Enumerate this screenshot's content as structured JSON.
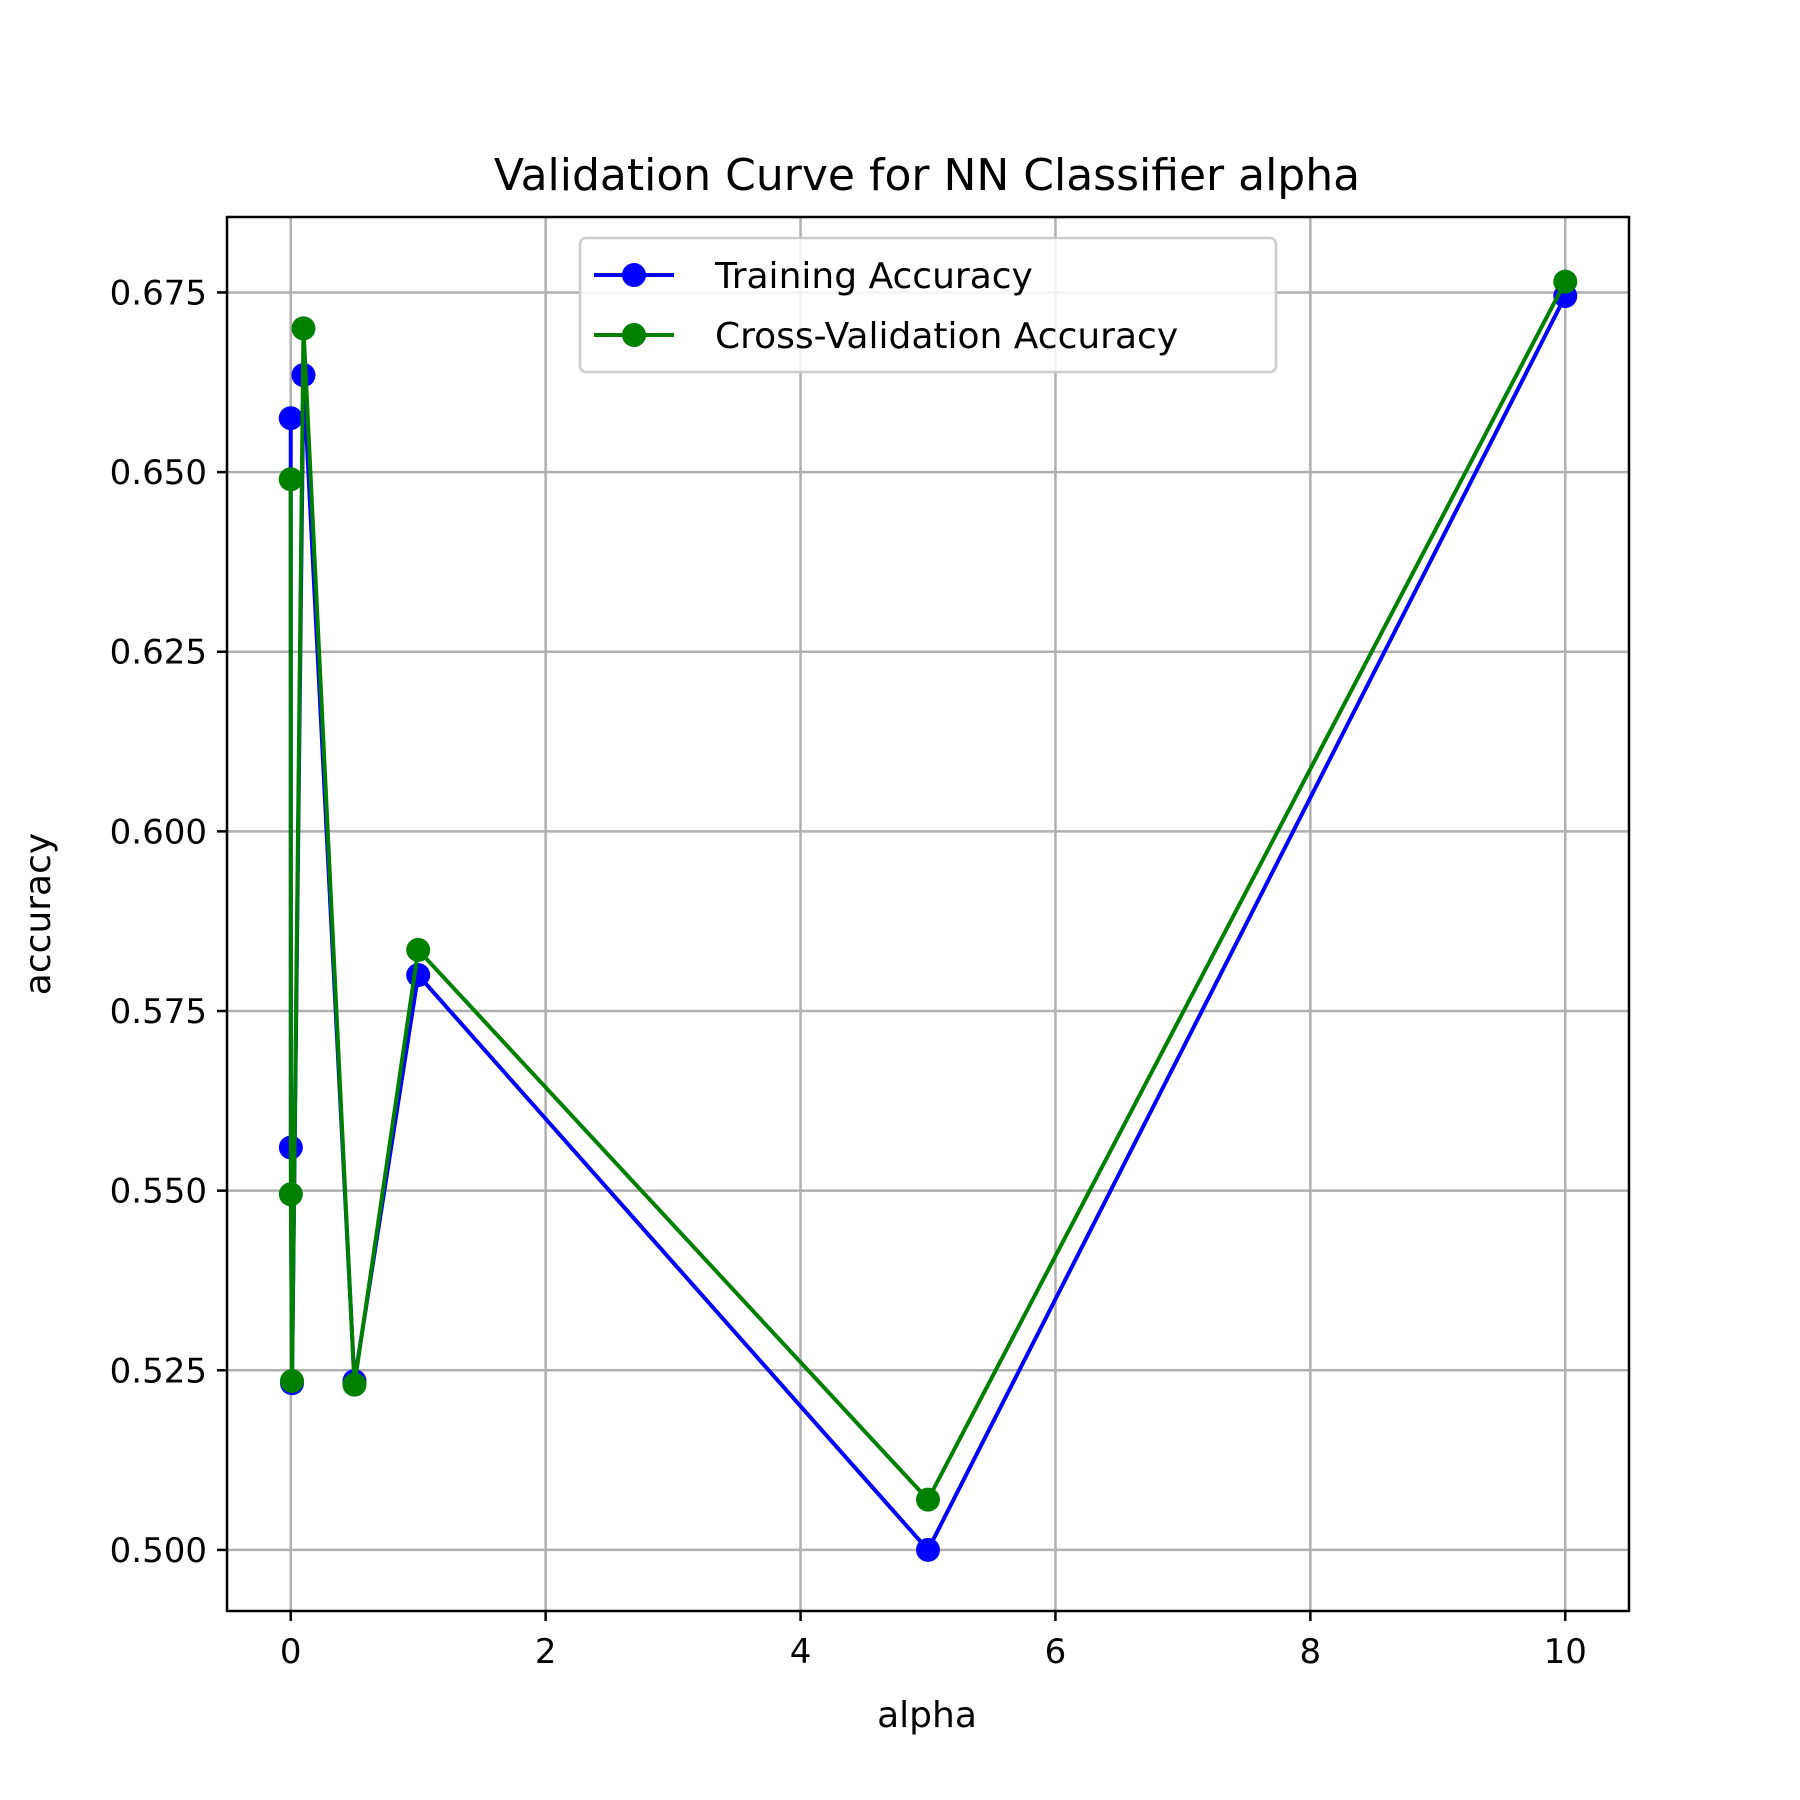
{
  "chart_data": {
    "type": "line",
    "title": "Validation Curve for NN Classifier alpha",
    "xlabel": "alpha",
    "ylabel": "accuracy",
    "xlim": [
      -0.5,
      10.5
    ],
    "ylim": [
      0.4915,
      0.6855
    ],
    "xticks": [
      0,
      2,
      4,
      6,
      8,
      10
    ],
    "yticks": [
      0.5,
      0.525,
      0.55,
      0.575,
      0.6,
      0.625,
      0.65,
      0.675
    ],
    "xtick_labels": [
      "0",
      "2",
      "4",
      "6",
      "8",
      "10"
    ],
    "ytick_labels": [
      "0.500",
      "0.525",
      "0.550",
      "0.575",
      "0.600",
      "0.625",
      "0.650",
      "0.675"
    ],
    "grid": true,
    "legend_position": "upper-center",
    "series": [
      {
        "name": "Training Accuracy",
        "color": "#0000ff",
        "x": [
          0.0001,
          0.001,
          0.01,
          0.1,
          0.5,
          1,
          5,
          10
        ],
        "y": [
          0.6575,
          0.556,
          0.5232,
          0.6635,
          0.5235,
          0.58,
          0.5,
          0.6745
        ]
      },
      {
        "name": "Cross-Validation Accuracy",
        "color": "#008000",
        "x": [
          0.0001,
          0.001,
          0.01,
          0.1,
          0.5,
          1,
          5,
          10
        ],
        "y": [
          0.649,
          0.5495,
          0.5235,
          0.67,
          0.523,
          0.5835,
          0.507,
          0.6765
        ]
      }
    ]
  }
}
